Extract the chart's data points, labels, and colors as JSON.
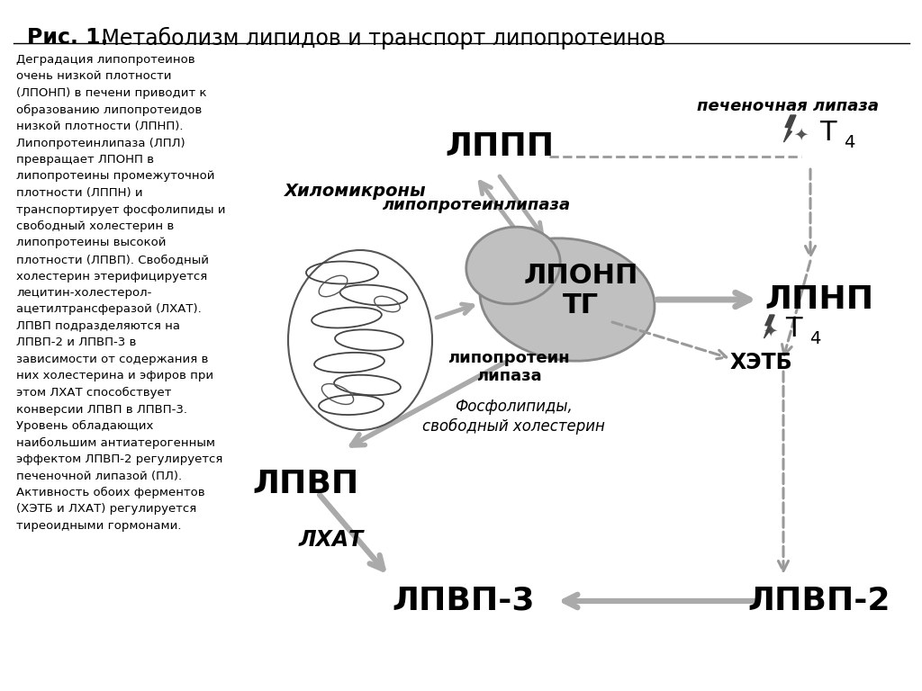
{
  "title_bold": "Рис. 1.",
  "title_regular": " Метаболизм липидов и транспорт липопротеинов",
  "left_text_lines": [
    "Деградация липопротеинов",
    "очень низкой плотности",
    "(ЛПОНП) в печени приводит к",
    "образованию липопротеидов",
    "низкой плотности (ЛПНП).",
    "Липопротеинлипаза (ЛПЛ)",
    "превращает ЛПОНП в",
    "липопротеины промежуточной",
    "плотности (ЛППН) и",
    "транспортирует фосфолипиды и",
    "свободный холестерин в",
    "липопротеины высокой",
    "плотности (ЛПВП). Свободный",
    "холестерин этерифицируется",
    "лецитин-холестерол-",
    "ацетилтрансферазой (ЛХАТ).",
    "ЛПВП подразделяются на",
    "ЛПВП-2 и ЛПВП-3 в",
    "зависимости от содержания в",
    "них холестерина и эфиров при",
    "этом ЛХАТ способствует",
    "конверсии ЛПВП в ЛПВП-3.",
    "Уровень обладающих",
    "наибольшим антиатерогенным",
    "эффектом ЛПВП-2 регулируется",
    "печеночной липазой (ПЛ).",
    "Активность обоих ферментов",
    "(ХЭТБ и ЛХАТ) регулируется",
    "тиреоидными гормонами."
  ],
  "bg_color": "#ffffff",
  "arrow_gray": "#aaaaaa",
  "dashed_gray": "#999999",
  "text_black": "#000000",
  "liver_fill": "#c0c0c0",
  "liver_edge": "#888888"
}
